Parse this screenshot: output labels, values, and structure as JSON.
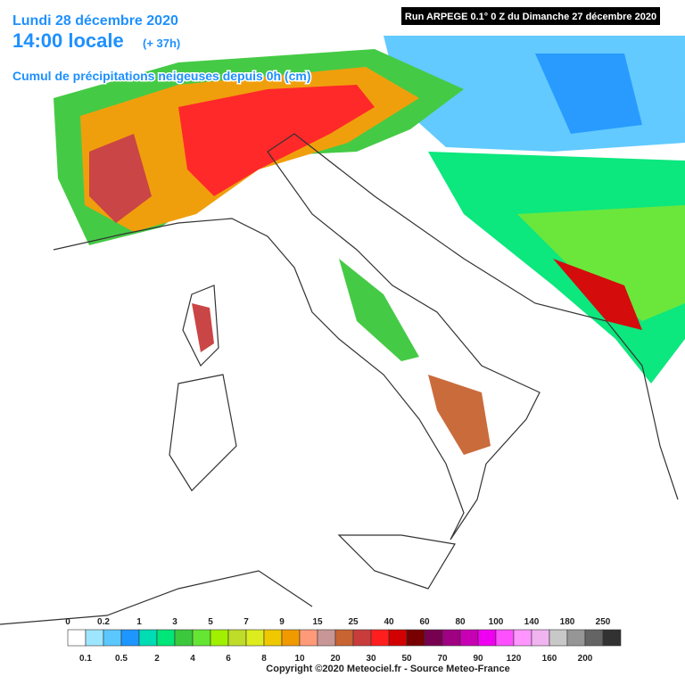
{
  "header": {
    "title": "Lundi 28 décembre 2020",
    "time": "14:00 locale",
    "lead": "(+ 37h)",
    "subtitle": "Cumul de précipitations neigeuses depuis 0h (cm)",
    "run": "Run ARPEGE 0.1° 0 Z du Dimanche 27 décembre 2020"
  },
  "legend": {
    "labels": [
      0,
      0.1,
      0.2,
      0.5,
      1,
      2,
      3,
      4,
      5,
      6,
      7,
      8,
      9,
      10,
      15,
      20,
      25,
      30,
      40,
      50,
      60,
      70,
      80,
      90,
      100,
      120,
      140,
      160,
      180,
      200,
      250
    ],
    "colors": [
      "#ffffff",
      "#9ee6ff",
      "#5ac8ff",
      "#1e96ff",
      "#00dcb4",
      "#00e678",
      "#3cc83c",
      "#64e632",
      "#a0f000",
      "#bedc28",
      "#dcec1e",
      "#f0c800",
      "#f09a00",
      "#ff9a78",
      "#c89696",
      "#c86432",
      "#c83c3c",
      "#ff1e1e",
      "#d20000",
      "#780000",
      "#780050",
      "#a00082",
      "#c800b4",
      "#f000f0",
      "#ff50ff",
      "#ff96ff",
      "#f0b4f0",
      "#c8c8c8",
      "#969696",
      "#646464",
      "#323232"
    ]
  },
  "footer": "Copyright ©2020 Meteociel.fr - Source Meteo-France"
}
